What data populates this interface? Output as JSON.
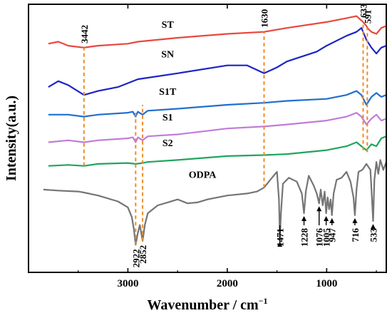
{
  "chart_data": {
    "type": "line",
    "title": "",
    "xlabel": "Wavenumber / cm",
    "xlabel_superscript": "−1",
    "ylabel": "Intensity(a.u.)",
    "xlim": [
      4000,
      400
    ],
    "x_reversed": true,
    "x_ticks": [
      3000,
      2000,
      1000
    ],
    "y_ticks_shown": false,
    "grid": false,
    "series": [
      {
        "name": "ST",
        "color": "#e8483f",
        "x": [
          3800,
          3700,
          3600,
          3442,
          3300,
          3000,
          2900,
          2500,
          2000,
          1630,
          1400,
          1000,
          800,
          700,
          633,
          600,
          591,
          550,
          500,
          450,
          400
        ],
        "y": [
          8.4,
          8.5,
          8.3,
          8.2,
          8.3,
          8.4,
          8.5,
          8.7,
          8.9,
          9.0,
          9.2,
          9.5,
          9.7,
          9.8,
          9.5,
          9.3,
          9.2,
          9.0,
          8.9,
          9.2,
          9.3
        ]
      },
      {
        "name": "SN",
        "color": "#1c24c4",
        "x": [
          3800,
          3700,
          3600,
          3442,
          3300,
          3100,
          2900,
          2500,
          2000,
          1800,
          1630,
          1500,
          1400,
          1100,
          1000,
          800,
          700,
          650,
          600,
          550,
          500,
          450,
          400
        ],
        "y": [
          6.2,
          6.5,
          6.3,
          5.8,
          6.0,
          6.2,
          6.6,
          6.9,
          7.3,
          7.3,
          6.9,
          7.2,
          7.5,
          8.0,
          8.3,
          8.8,
          9.0,
          9.2,
          8.6,
          8.2,
          7.9,
          8.2,
          8.3
        ]
      },
      {
        "name": "S1T",
        "color": "#1f6fcf",
        "x": [
          3800,
          3600,
          3442,
          3300,
          3000,
          2950,
          2922,
          2900,
          2852,
          2800,
          2500,
          2000,
          1630,
          1400,
          1000,
          800,
          700,
          650,
          600,
          550,
          500,
          450,
          400
        ],
        "y": [
          4.8,
          4.8,
          4.7,
          4.8,
          4.9,
          4.95,
          4.7,
          4.95,
          4.8,
          5.0,
          5.1,
          5.3,
          5.4,
          5.5,
          5.6,
          5.8,
          6.0,
          5.8,
          5.3,
          5.7,
          5.9,
          5.7,
          5.8
        ]
      },
      {
        "name": "S1",
        "color": "#c07cd8",
        "x": [
          3800,
          3600,
          3442,
          3300,
          3000,
          2950,
          2922,
          2900,
          2852,
          2800,
          2500,
          2000,
          1630,
          1400,
          1000,
          800,
          700,
          650,
          600,
          550,
          500,
          450,
          400
        ],
        "y": [
          3.4,
          3.5,
          3.4,
          3.5,
          3.6,
          3.65,
          3.4,
          3.65,
          3.5,
          3.7,
          3.8,
          4.1,
          4.2,
          4.3,
          4.5,
          4.7,
          4.9,
          4.7,
          4.3,
          4.6,
          4.8,
          4.5,
          4.6
        ]
      },
      {
        "name": "S2",
        "color": "#1fa55f",
        "x": [
          3800,
          3600,
          3442,
          3300,
          3000,
          2922,
          2852,
          2800,
          2500,
          2000,
          1630,
          1400,
          1000,
          800,
          700,
          650,
          600,
          550,
          500,
          450,
          400
        ],
        "y": [
          2.2,
          2.25,
          2.2,
          2.3,
          2.35,
          2.3,
          2.35,
          2.4,
          2.5,
          2.7,
          2.75,
          2.8,
          3.0,
          3.2,
          3.4,
          3.2,
          3.0,
          3.3,
          3.2,
          3.6,
          3.7
        ]
      },
      {
        "name": "ODPA",
        "color": "#757575",
        "x": [
          3850,
          3700,
          3500,
          3442,
          3300,
          3100,
          3000,
          2960,
          2940,
          2922,
          2900,
          2880,
          2852,
          2830,
          2800,
          2700,
          2600,
          2500,
          2400,
          2300,
          2200,
          2100,
          2000,
          1900,
          1800,
          1700,
          1630,
          1550,
          1500,
          1480,
          1471,
          1460,
          1440,
          1380,
          1300,
          1250,
          1228,
          1210,
          1180,
          1130,
          1100,
          1076,
          1060,
          1040,
          1020,
          1005,
          990,
          975,
          960,
          947,
          930,
          900,
          850,
          800,
          760,
          730,
          716,
          700,
          680,
          640,
          600,
          560,
          545,
          533,
          520,
          500,
          480,
          460,
          430,
          400
        ],
        "y": [
          1.0,
          0.95,
          0.9,
          0.85,
          0.7,
          0.4,
          0.1,
          -0.4,
          -1.0,
          -1.8,
          -1.2,
          -0.8,
          -1.6,
          -0.8,
          -0.2,
          0.2,
          0.35,
          0.5,
          0.3,
          0.35,
          0.5,
          0.6,
          0.7,
          0.75,
          0.8,
          0.9,
          1.1,
          1.6,
          1.9,
          0.5,
          -1.5,
          -0.2,
          1.3,
          1.6,
          1.4,
          0.8,
          -0.2,
          0.9,
          1.7,
          1.2,
          0.8,
          0.3,
          1.0,
          0.2,
          0.9,
          -0.2,
          0.6,
          0.0,
          0.5,
          -0.3,
          0.8,
          1.5,
          1.6,
          1.9,
          1.4,
          0.6,
          -0.3,
          1.0,
          1.9,
          2.0,
          2.3,
          2.0,
          0.6,
          -0.6,
          1.5,
          2.4,
          1.8,
          2.5,
          2.0,
          2.4
        ]
      }
    ],
    "series_labels": [
      {
        "text": "ST",
        "x": 2600,
        "y": 9.2
      },
      {
        "text": "SN",
        "x": 2600,
        "y": 7.7
      },
      {
        "text": "S1T",
        "x": 2600,
        "y": 5.8
      },
      {
        "text": "S1",
        "x": 2600,
        "y": 4.5
      },
      {
        "text": "S2",
        "x": 2600,
        "y": 3.2
      },
      {
        "text": "ODPA",
        "x": 2250,
        "y": 1.6
      }
    ],
    "dashed_markers": [
      {
        "x": 3442,
        "label": "3442",
        "y_from": 2.2,
        "y_to": 8.2,
        "label_position": "top"
      },
      {
        "x": 1630,
        "label": "1630",
        "y_from": 1.1,
        "y_to": 9.0,
        "label_position": "top"
      },
      {
        "x": 633,
        "label": "633",
        "y_from": 3.0,
        "y_to": 9.5,
        "label_position": "top"
      },
      {
        "x": 591,
        "label": "591",
        "y_from": 2.9,
        "y_to": 9.2,
        "label_position": "top"
      },
      {
        "x": 2922,
        "label": "2922",
        "y_from": -1.8,
        "y_to": 4.9,
        "label_position": "bottom"
      },
      {
        "x": 2852,
        "label": "2852",
        "y_from": -1.6,
        "y_to": 5.3,
        "label_position": "bottom"
      }
    ],
    "arrow_markers": [
      {
        "x": 1471,
        "label": "1471"
      },
      {
        "x": 1228,
        "label": "1228"
      },
      {
        "x": 1076,
        "label": "1076"
      },
      {
        "x": 1005,
        "label": "1005"
      },
      {
        "x": 947,
        "label": "947"
      },
      {
        "x": 716,
        "label": "716"
      },
      {
        "x": 533,
        "label": "533"
      }
    ]
  }
}
